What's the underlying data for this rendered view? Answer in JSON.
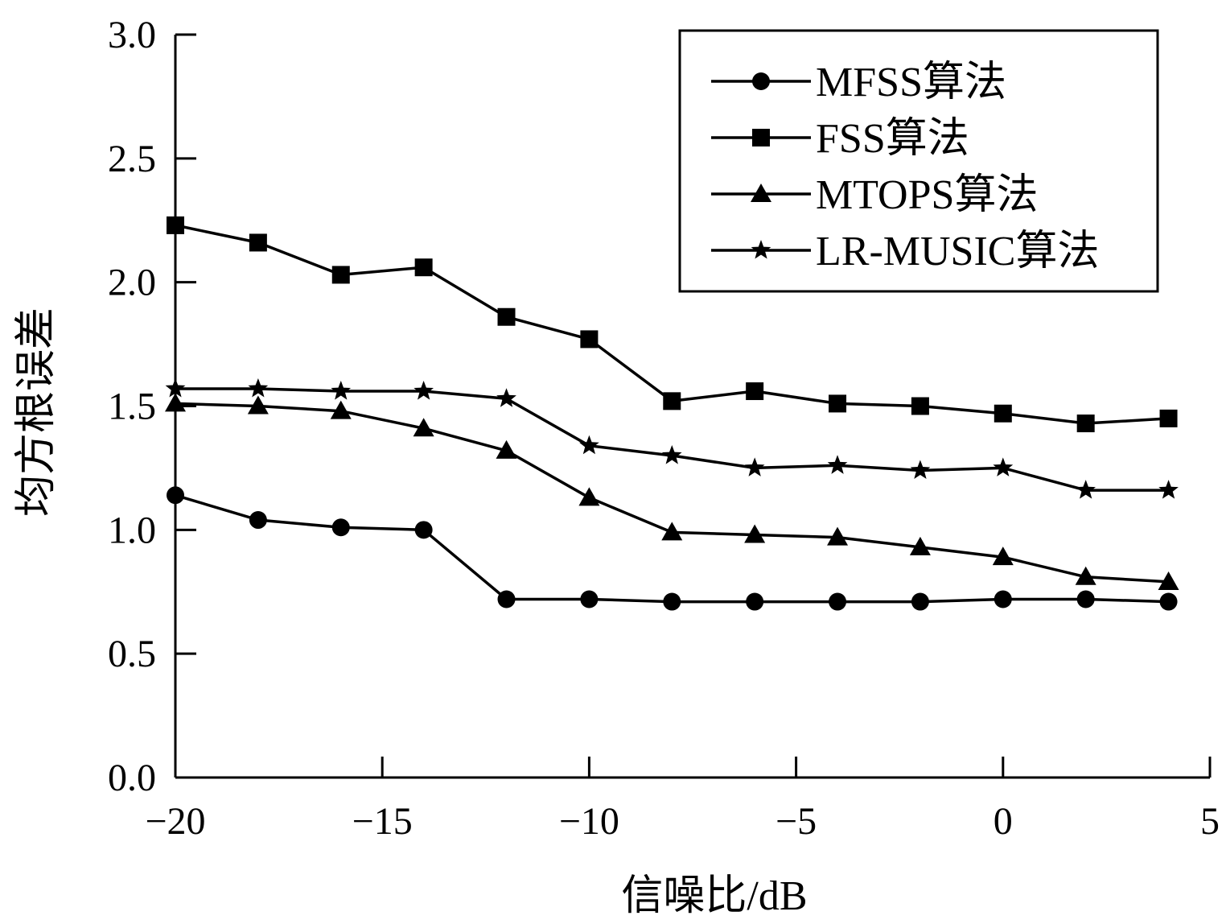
{
  "chart_data": {
    "type": "line",
    "title": "",
    "xlabel": "信噪比/dB",
    "ylabel": "均方根误差",
    "xlim": [
      -20,
      5
    ],
    "ylim": [
      0,
      3
    ],
    "xticks": [
      -20,
      -15,
      -10,
      -5,
      0,
      5
    ],
    "xtick_labels": [
      "−20",
      "−15",
      "−10",
      "−5",
      "0",
      "5"
    ],
    "yticks": [
      0,
      0.5,
      1.0,
      1.5,
      2.0,
      2.5,
      3.0
    ],
    "ytick_labels": [
      "0.0",
      "0.5",
      "1.0",
      "1.5",
      "2.0",
      "2.5",
      "3.0"
    ],
    "grid": false,
    "legend_position": "top-right",
    "x": [
      -20,
      -18,
      -16,
      -14,
      -12,
      -10,
      -8,
      -6,
      -4,
      -2,
      0,
      2,
      4
    ],
    "series": [
      {
        "name": "MFSS算法",
        "marker": "circle",
        "values": [
          1.14,
          1.04,
          1.01,
          1.0,
          0.72,
          0.72,
          0.71,
          0.71,
          0.71,
          0.71,
          0.72,
          0.72,
          0.71
        ]
      },
      {
        "name": "FSS算法",
        "marker": "square",
        "values": [
          2.23,
          2.16,
          2.03,
          2.06,
          1.86,
          1.77,
          1.52,
          1.56,
          1.51,
          1.5,
          1.47,
          1.43,
          1.45
        ]
      },
      {
        "name": "MTOPS算法",
        "marker": "triangle",
        "values": [
          1.51,
          1.5,
          1.48,
          1.41,
          1.32,
          1.13,
          0.99,
          0.98,
          0.97,
          0.93,
          0.89,
          0.81,
          0.79
        ]
      },
      {
        "name": "LR-MUSIC算法",
        "marker": "star",
        "values": [
          1.57,
          1.57,
          1.56,
          1.56,
          1.53,
          1.34,
          1.3,
          1.25,
          1.26,
          1.24,
          1.25,
          1.16,
          1.16
        ]
      }
    ]
  }
}
